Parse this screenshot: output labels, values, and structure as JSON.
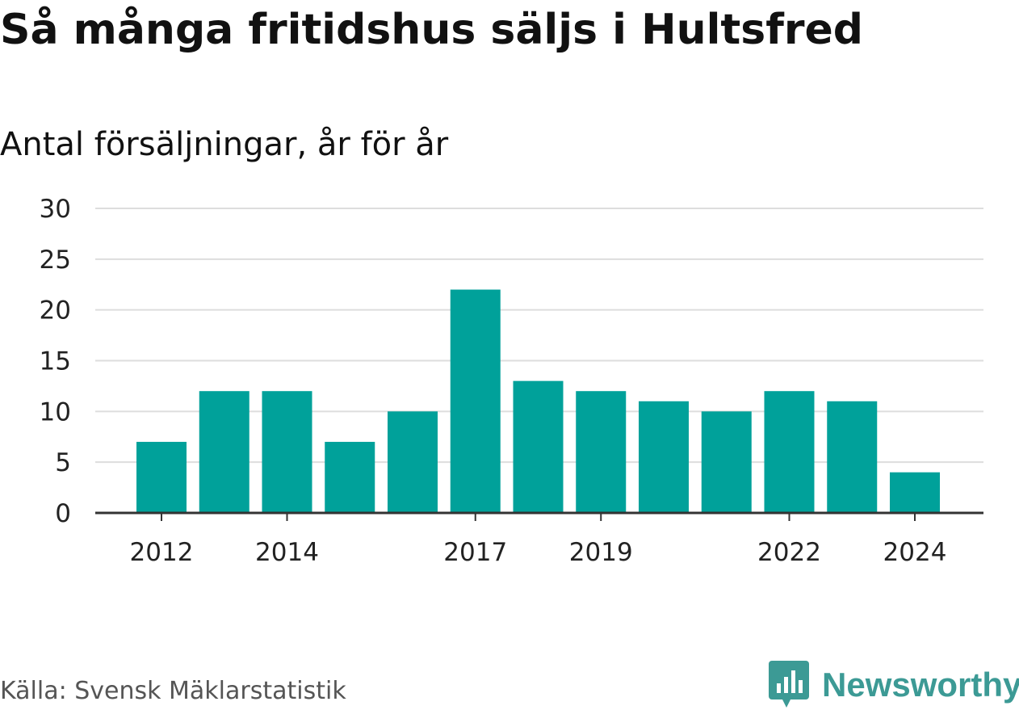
{
  "title": "Så många fritidshus säljs i Hultsfred",
  "subtitle": "Antal försäljningar, år för år",
  "source": "Källa: Svensk Mäklarstatistik",
  "brand": {
    "name": "Newsworthy",
    "icon": "bar-chart-speech-bubble-icon"
  },
  "colors": {
    "bar": "#00a19a",
    "gridline": "#dddddd",
    "axis": "#333333",
    "brand": "#3c9a95"
  },
  "chart_data": {
    "type": "bar",
    "title": "Så många fritidshus säljs i Hultsfred",
    "subtitle": "Antal försäljningar, år för år",
    "xlabel": "",
    "ylabel": "",
    "categories": [
      "2012",
      "2013",
      "2014",
      "2015",
      "2016",
      "2017",
      "2018",
      "2019",
      "2020",
      "2021",
      "2022",
      "2023",
      "2024"
    ],
    "values": [
      7,
      12,
      12,
      7,
      10,
      22,
      13,
      12,
      11,
      10,
      12,
      11,
      4
    ],
    "x_tick_labels": [
      "2012",
      "2014",
      "2017",
      "2019",
      "2022",
      "2024"
    ],
    "y_ticks": [
      0,
      5,
      10,
      15,
      20,
      25,
      30
    ],
    "ylim": [
      0,
      30
    ],
    "grid": true,
    "legend": "none"
  }
}
